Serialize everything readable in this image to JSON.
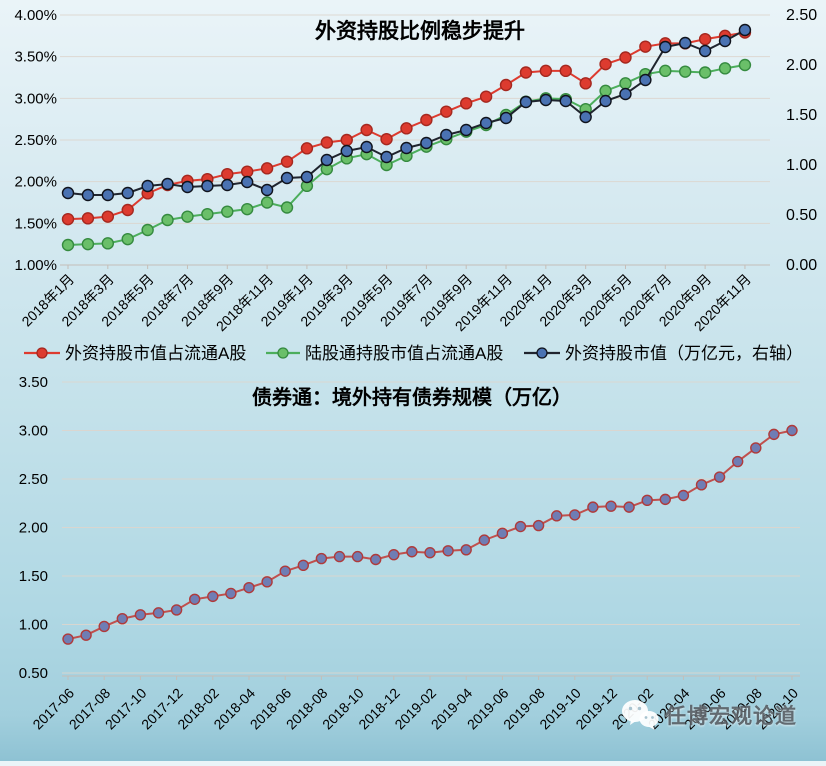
{
  "watermark": {
    "icon": "wechat-icon",
    "label": "任博宏观论道"
  },
  "chart_data": [
    {
      "type": "line",
      "title": "外资持股比例稳步提升",
      "legend_position": "bottom",
      "grid": true,
      "tick_every": 2,
      "x": [
        "2018年1月",
        "2018年2月",
        "2018年3月",
        "2018年4月",
        "2018年5月",
        "2018年6月",
        "2018年7月",
        "2018年8月",
        "2018年9月",
        "2018年10月",
        "2018年11月",
        "2018年12月",
        "2019年1月",
        "2019年2月",
        "2019年3月",
        "2019年4月",
        "2019年5月",
        "2019年6月",
        "2019年7月",
        "2019年8月",
        "2019年9月",
        "2019年10月",
        "2019年11月",
        "2019年12月",
        "2020年1月",
        "2020年2月",
        "2020年3月",
        "2020年4月",
        "2020年5月",
        "2020年6月",
        "2020年7月",
        "2020年8月",
        "2020年9月",
        "2020年10月",
        "2020年11月"
      ],
      "x_tick_labels": [
        "2018年1月",
        "2018年3月",
        "2018年5月",
        "2018年7月",
        "2018年9月",
        "2018年11月",
        "2019年1月",
        "2019年3月",
        "2019年5月",
        "2019年7月",
        "2019年9月",
        "2019年11月",
        "2020年1月",
        "2020年3月",
        "2020年5月",
        "2020年7月",
        "2020年9月",
        "2020年11月"
      ],
      "left_axis": {
        "min": 1.0,
        "max": 4.0,
        "step": 0.5,
        "tick_labels": [
          "4.00%",
          "3.50%",
          "3.00%",
          "2.50%",
          "2.00%",
          "1.50%",
          "1.00%"
        ]
      },
      "right_axis": {
        "min": 0.0,
        "max": 2.5,
        "step": 0.5,
        "tick_labels": [
          "2.50",
          "2.00",
          "1.50",
          "1.00",
          "0.50",
          "0.00"
        ]
      },
      "series": [
        {
          "name": "外资持股市值占流通A股",
          "axis": "left",
          "line_color": "#dd3b2f",
          "marker_fill": "#dd3b2f",
          "marker_stroke": "#a5281f",
          "values": [
            1.55,
            1.56,
            1.58,
            1.66,
            1.86,
            1.96,
            2.01,
            2.03,
            2.09,
            2.12,
            2.16,
            2.24,
            2.4,
            2.47,
            2.5,
            2.62,
            2.51,
            2.64,
            2.74,
            2.84,
            2.94,
            3.02,
            3.16,
            3.31,
            3.33,
            3.33,
            3.18,
            3.41,
            3.49,
            3.62,
            3.66,
            3.66,
            3.71,
            3.75,
            3.79
          ]
        },
        {
          "name": "陆股通持股市值占流通A股",
          "axis": "left",
          "line_color": "#4cae5c",
          "marker_fill": "#6abf69",
          "marker_stroke": "#358a3f",
          "values": [
            1.24,
            1.25,
            1.26,
            1.31,
            1.42,
            1.54,
            1.58,
            1.61,
            1.64,
            1.67,
            1.75,
            1.69,
            1.95,
            2.15,
            2.28,
            2.33,
            2.2,
            2.31,
            2.42,
            2.51,
            2.6,
            2.68,
            2.8,
            2.96,
            3.0,
            2.99,
            2.87,
            3.09,
            3.18,
            3.29,
            3.33,
            3.32,
            3.31,
            3.36,
            3.4
          ]
        },
        {
          "name": "外资持股市值（万亿元，右轴）",
          "axis": "right",
          "line_color": "#20242e",
          "marker_fill": "#4a72b2",
          "marker_stroke": "#10131c",
          "values": [
            0.72,
            0.7,
            0.7,
            0.72,
            0.79,
            0.81,
            0.78,
            0.79,
            0.8,
            0.83,
            0.75,
            0.87,
            0.88,
            1.05,
            1.14,
            1.18,
            1.08,
            1.17,
            1.22,
            1.3,
            1.35,
            1.42,
            1.47,
            1.63,
            1.65,
            1.64,
            1.48,
            1.64,
            1.71,
            1.85,
            2.18,
            2.22,
            2.14,
            2.24,
            2.35
          ]
        }
      ]
    },
    {
      "type": "line",
      "title": "债券通：境外持有债券规模（万亿）",
      "legend_position": "none",
      "grid": true,
      "tick_every": 2,
      "x": [
        "2017-06",
        "2017-07",
        "2017-08",
        "2017-09",
        "2017-10",
        "2017-11",
        "2017-12",
        "2018-01",
        "2018-02",
        "2018-03",
        "2018-04",
        "2018-05",
        "2018-06",
        "2018-07",
        "2018-08",
        "2018-09",
        "2018-10",
        "2018-11",
        "2018-12",
        "2019-01",
        "2019-02",
        "2019-03",
        "2019-04",
        "2019-05",
        "2019-06",
        "2019-07",
        "2019-08",
        "2019-09",
        "2019-10",
        "2019-11",
        "2019-12",
        "2020-01",
        "2020-02",
        "2020-03",
        "2020-04",
        "2020-05",
        "2020-06",
        "2020-07",
        "2020-08",
        "2020-09",
        "2020-10"
      ],
      "x_tick_labels": [
        "2017-06",
        "2017-08",
        "2017-10",
        "2017-12",
        "2018-02",
        "2018-04",
        "2018-06",
        "2018-08",
        "2018-10",
        "2018-12",
        "2019-02",
        "2019-04",
        "2019-06",
        "2019-08",
        "2019-10",
        "2019-12",
        "2020-02",
        "2020-04",
        "2020-06",
        "2020-08",
        "2020-10"
      ],
      "left_axis": {
        "min": 0.5,
        "max": 3.5,
        "step": 0.5,
        "tick_labels": [
          "3.50",
          "3.00",
          "2.50",
          "2.00",
          "1.50",
          "1.00",
          "0.50"
        ]
      },
      "series": [
        {
          "name": "境外持有债券规模",
          "axis": "left",
          "line_color": "#c0504d",
          "marker_fill": "#6f7db4",
          "marker_stroke": "#b03a3a",
          "values": [
            0.85,
            0.89,
            0.98,
            1.06,
            1.1,
            1.12,
            1.15,
            1.26,
            1.29,
            1.32,
            1.38,
            1.44,
            1.55,
            1.61,
            1.68,
            1.7,
            1.7,
            1.67,
            1.72,
            1.75,
            1.74,
            1.76,
            1.77,
            1.87,
            1.94,
            2.01,
            2.02,
            2.12,
            2.13,
            2.21,
            2.22,
            2.21,
            2.28,
            2.29,
            2.33,
            2.44,
            2.52,
            2.68,
            2.82,
            2.96,
            3.0
          ]
        }
      ]
    }
  ],
  "colors": {
    "gridline": "#ddd6ce",
    "axis_tick": "#c4beb8",
    "background_top": "#eaf4f8",
    "background_bottom": "#8ec2d3"
  }
}
